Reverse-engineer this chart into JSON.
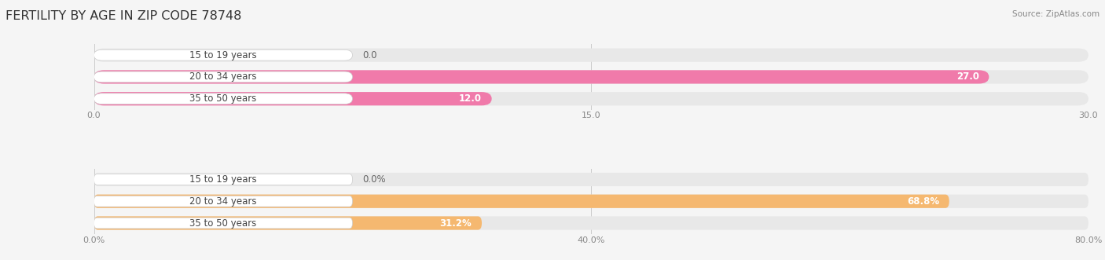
{
  "title": "FERTILITY BY AGE IN ZIP CODE 78748",
  "source": "Source: ZipAtlas.com",
  "top_chart": {
    "categories": [
      "15 to 19 years",
      "20 to 34 years",
      "35 to 50 years"
    ],
    "values": [
      0.0,
      27.0,
      12.0
    ],
    "xlim": [
      0,
      30.0
    ],
    "xticks": [
      0.0,
      15.0,
      30.0
    ],
    "xtick_labels": [
      "0.0",
      "15.0",
      "30.0"
    ],
    "bar_color": "#f07aaa",
    "bar_bg_color": "#e8e8e8",
    "label_bg_color": "#ffffff"
  },
  "bottom_chart": {
    "categories": [
      "15 to 19 years",
      "20 to 34 years",
      "35 to 50 years"
    ],
    "values": [
      0.0,
      68.8,
      31.2
    ],
    "xlim": [
      0,
      80.0
    ],
    "xticks": [
      0.0,
      40.0,
      80.0
    ],
    "xtick_labels": [
      "0.0%",
      "40.0%",
      "80.0%"
    ],
    "bar_color": "#f5b870",
    "bar_bg_color": "#e8e8e8",
    "label_bg_color": "#ffffff"
  },
  "background_color": "#f5f5f5",
  "title_fontsize": 11.5,
  "cat_fontsize": 8.5,
  "val_fontsize": 8.5,
  "tick_fontsize": 8,
  "source_fontsize": 7.5,
  "bar_height": 0.62,
  "label_text_color": "#444444",
  "val_color_inside": "#ffffff",
  "val_color_outside": "#888888"
}
